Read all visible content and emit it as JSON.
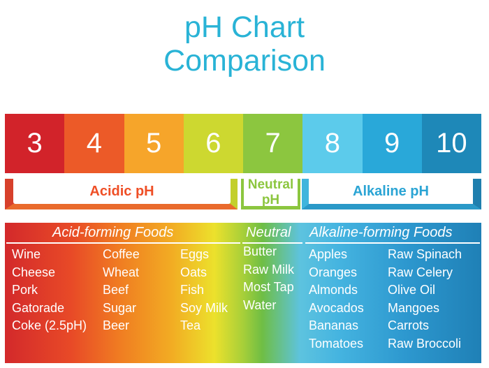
{
  "title": {
    "line1": "pH Chart",
    "line2": "Comparison"
  },
  "scale": [
    {
      "value": "3",
      "color": "#d2232a"
    },
    {
      "value": "4",
      "color": "#ec5a28"
    },
    {
      "value": "5",
      "color": "#f6a52a"
    },
    {
      "value": "6",
      "color": "#cdd830"
    },
    {
      "value": "7",
      "color": "#8cc63f"
    },
    {
      "value": "8",
      "color": "#5ccbeb"
    },
    {
      "value": "9",
      "color": "#29a8d9"
    },
    {
      "value": "10",
      "color": "#1e88b8"
    }
  ],
  "ranges": {
    "acidic": "Acidic pH",
    "neutral_line1": "Neutral",
    "neutral_line2": "pH",
    "alkaline": "Alkaline pH"
  },
  "foods": {
    "acid_heading": "Acid-forming Foods",
    "neutral_heading": "Neutral",
    "alkaline_heading": "Alkaline-forming Foods",
    "acid_col1": [
      "Wine",
      "Cheese",
      "Pork",
      "Gatorade",
      "Coke (2.5pH)"
    ],
    "acid_col2": [
      "Coffee",
      "Wheat",
      "Beef",
      "Sugar",
      "Beer"
    ],
    "acid_col3": [
      "Eggs",
      "Oats",
      "Fish",
      "Soy Milk",
      "Tea"
    ],
    "neutral": [
      "Butter",
      "Raw Milk",
      "Most Tap",
      "Water"
    ],
    "alk_col1": [
      "Apples",
      "Oranges",
      "Almonds",
      "Avocados",
      "Bananas",
      "Tomatoes"
    ],
    "alk_col2": [
      "Raw Spinach",
      "Raw Celery",
      "Olive Oil",
      "Mangoes",
      "Carrots",
      "Raw Broccoli"
    ]
  }
}
